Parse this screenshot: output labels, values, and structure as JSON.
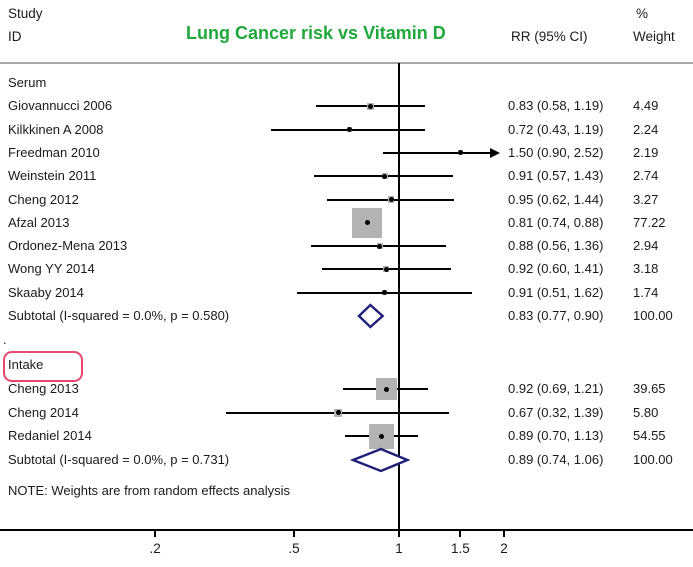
{
  "header": {
    "study_line1": "Study",
    "study_line2": "ID",
    "rr_column": "RR (95% CI)",
    "percent_sign": "%",
    "weight_column": "Weight"
  },
  "note": "NOTE: Weights are from random effects analysis",
  "stray_period": ".",
  "colors": {
    "title_green": "#1fa83c",
    "marker_gray": "#b3b3b3",
    "diamond_navy": "#1f1f78",
    "highlight_pink": "#e8476f",
    "header_rule_gray": "#a8a8a8",
    "axis_black": "#000000",
    "bottom_band": "#dfe9ec"
  },
  "chart_data": {
    "type": "forest",
    "title": "Lung Cancer risk vs Vitamin D",
    "effect_measure": "RR",
    "x_axis": {
      "scale": "log",
      "ref_line": 1,
      "ticks": [
        0.2,
        0.5,
        1,
        1.5,
        2
      ],
      "tick_labels": [
        ".2",
        ".5",
        "1",
        "1.5",
        "2"
      ]
    },
    "groups": [
      {
        "name": "Serum",
        "boxed": false,
        "studies": [
          {
            "id": "Giovannucci 2006",
            "rr": 0.83,
            "lo": 0.58,
            "hi": 1.19,
            "rr_text": "0.83 (0.58, 1.19)",
            "weight": 4.49,
            "weight_text": "4.49",
            "arrow": false
          },
          {
            "id": "Kilkkinen A 2008",
            "rr": 0.72,
            "lo": 0.43,
            "hi": 1.19,
            "rr_text": "0.72 (0.43, 1.19)",
            "weight": 2.24,
            "weight_text": "2.24",
            "arrow": false
          },
          {
            "id": "Freedman 2010",
            "rr": 1.5,
            "lo": 0.9,
            "hi": 2.52,
            "rr_text": "1.50 (0.90, 2.52)",
            "weight": 2.19,
            "weight_text": "2.19",
            "arrow": true
          },
          {
            "id": "Weinstein 2011",
            "rr": 0.91,
            "lo": 0.57,
            "hi": 1.43,
            "rr_text": "0.91 (0.57, 1.43)",
            "weight": 2.74,
            "weight_text": "2.74",
            "arrow": false
          },
          {
            "id": "Cheng 2012",
            "rr": 0.95,
            "lo": 0.62,
            "hi": 1.44,
            "rr_text": "0.95 (0.62, 1.44)",
            "weight": 3.27,
            "weight_text": "3.27",
            "arrow": false
          },
          {
            "id": "Afzal 2013",
            "rr": 0.81,
            "lo": 0.74,
            "hi": 0.88,
            "rr_text": "0.81 (0.74, 0.88)",
            "weight": 77.22,
            "weight_text": "77.22",
            "arrow": false
          },
          {
            "id": "Ordonez-Mena 2013",
            "rr": 0.88,
            "lo": 0.56,
            "hi": 1.36,
            "rr_text": "0.88 (0.56, 1.36)",
            "weight": 2.94,
            "weight_text": "2.94",
            "arrow": false
          },
          {
            "id": "Wong YY 2014",
            "rr": 0.92,
            "lo": 0.6,
            "hi": 1.41,
            "rr_text": "0.92 (0.60, 1.41)",
            "weight": 3.18,
            "weight_text": "3.18",
            "arrow": false
          },
          {
            "id": "Skaaby 2014",
            "rr": 0.91,
            "lo": 0.51,
            "hi": 1.62,
            "rr_text": "0.91 (0.51, 1.62)",
            "weight": 1.74,
            "weight_text": "1.74",
            "arrow": false
          }
        ],
        "subtotal": {
          "label": "Subtotal  (I-squared = 0.0%, p = 0.580)",
          "rr": 0.83,
          "lo": 0.77,
          "hi": 0.9,
          "rr_text": "0.83 (0.77, 0.90)",
          "weight_text": "100.00"
        }
      },
      {
        "name": "Intake",
        "boxed": true,
        "studies": [
          {
            "id": "Cheng 2013",
            "rr": 0.92,
            "lo": 0.69,
            "hi": 1.21,
            "rr_text": "0.92 (0.69, 1.21)",
            "weight": 39.65,
            "weight_text": "39.65",
            "arrow": false
          },
          {
            "id": "Cheng 2014",
            "rr": 0.67,
            "lo": 0.32,
            "hi": 1.39,
            "rr_text": "0.67 (0.32, 1.39)",
            "weight": 5.8,
            "weight_text": "5.80",
            "arrow": false
          },
          {
            "id": "Redaniel 2014",
            "rr": 0.89,
            "lo": 0.7,
            "hi": 1.13,
            "rr_text": "0.89 (0.70, 1.13)",
            "weight": 54.55,
            "weight_text": "54.55",
            "arrow": false
          }
        ],
        "subtotal": {
          "label": "Subtotal  (I-squared = 0.0%, p = 0.731)",
          "rr": 0.89,
          "lo": 0.74,
          "hi": 1.06,
          "rr_text": "0.89 (0.74, 1.06)",
          "weight_text": "100.00"
        }
      }
    ]
  }
}
